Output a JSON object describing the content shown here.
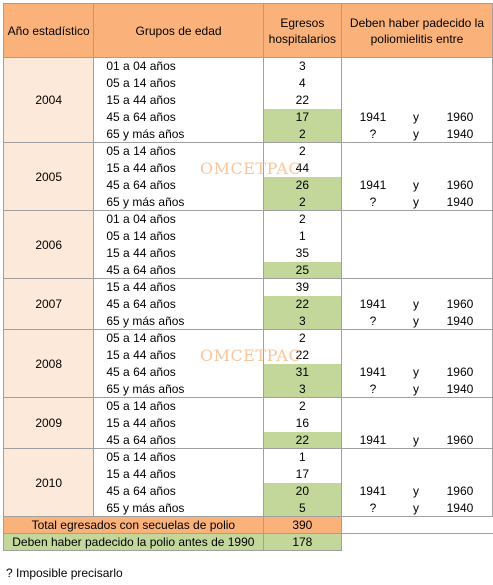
{
  "headers": {
    "year": "Año estadístico",
    "age": "Grupos de edad",
    "count": "Egresos hospitalarios",
    "period": "Deben haber padecido la poliomielitis entre"
  },
  "groups": [
    {
      "year": "2004",
      "rows": [
        {
          "age": "01 a 04 años",
          "count": "3",
          "highlight": false,
          "p1": "",
          "y": "",
          "p2": ""
        },
        {
          "age": "05 a 14 años",
          "count": "4",
          "highlight": false,
          "p1": "",
          "y": "",
          "p2": ""
        },
        {
          "age": "15 a 44 años",
          "count": "22",
          "highlight": false,
          "p1": "",
          "y": "",
          "p2": ""
        },
        {
          "age": "45 a 64 años",
          "count": "17",
          "highlight": true,
          "p1": "1941",
          "y": "y",
          "p2": "1960"
        },
        {
          "age": "65 y más años",
          "count": "2",
          "highlight": true,
          "p1": "?",
          "y": "y",
          "p2": "1940"
        }
      ]
    },
    {
      "year": "2005",
      "rows": [
        {
          "age": "05 a 14 años",
          "count": "2",
          "highlight": false,
          "p1": "",
          "y": "",
          "p2": ""
        },
        {
          "age": "15 a 44 años",
          "count": "44",
          "highlight": false,
          "p1": "",
          "y": "",
          "p2": ""
        },
        {
          "age": "45 a 64 años",
          "count": "26",
          "highlight": true,
          "p1": "1941",
          "y": "y",
          "p2": "1960"
        },
        {
          "age": "65 y más años",
          "count": "2",
          "highlight": true,
          "p1": "?",
          "y": "y",
          "p2": "1940"
        }
      ]
    },
    {
      "year": "2006",
      "rows": [
        {
          "age": "01 a 04 años",
          "count": "2",
          "highlight": false,
          "p1": "",
          "y": "",
          "p2": ""
        },
        {
          "age": "05 a 14 años",
          "count": "1",
          "highlight": false,
          "p1": "",
          "y": "",
          "p2": ""
        },
        {
          "age": "15 a 44 años",
          "count": "35",
          "highlight": false,
          "p1": "",
          "y": "",
          "p2": ""
        },
        {
          "age": "45 a 64 años",
          "count": "25",
          "highlight": true,
          "p1": "",
          "y": "",
          "p2": ""
        }
      ]
    },
    {
      "year": "2007",
      "rows": [
        {
          "age": "15 a 44 años",
          "count": "39",
          "highlight": false,
          "p1": "",
          "y": "",
          "p2": ""
        },
        {
          "age": "45 a 64 años",
          "count": "22",
          "highlight": true,
          "p1": "1941",
          "y": "y",
          "p2": "1960"
        },
        {
          "age": "65 y más años",
          "count": "3",
          "highlight": true,
          "p1": "?",
          "y": "y",
          "p2": "1940"
        }
      ]
    },
    {
      "year": "2008",
      "rows": [
        {
          "age": "05 a 14 años",
          "count": "2",
          "highlight": false,
          "p1": "",
          "y": "",
          "p2": ""
        },
        {
          "age": "15 a 44 años",
          "count": "22",
          "highlight": false,
          "p1": "",
          "y": "",
          "p2": ""
        },
        {
          "age": "45 a 64 años",
          "count": "31",
          "highlight": true,
          "p1": "1941",
          "y": "y",
          "p2": "1960"
        },
        {
          "age": "65 y más años",
          "count": "3",
          "highlight": true,
          "p1": "?",
          "y": "y",
          "p2": "1940"
        }
      ]
    },
    {
      "year": "2009",
      "rows": [
        {
          "age": "05 a 14 años",
          "count": "2",
          "highlight": false,
          "p1": "",
          "y": "",
          "p2": ""
        },
        {
          "age": "15 a 44 años",
          "count": "16",
          "highlight": false,
          "p1": "",
          "y": "",
          "p2": ""
        },
        {
          "age": "45 a 64 años",
          "count": "22",
          "highlight": true,
          "p1": "1941",
          "y": "y",
          "p2": "1960"
        }
      ]
    },
    {
      "year": "2010",
      "rows": [
        {
          "age": "05 a 14 años",
          "count": "1",
          "highlight": false,
          "p1": "",
          "y": "",
          "p2": ""
        },
        {
          "age": "15 a 44 años",
          "count": "17",
          "highlight": false,
          "p1": "",
          "y": "",
          "p2": ""
        },
        {
          "age": "45 a 64 años",
          "count": "20",
          "highlight": true,
          "p1": "1941",
          "y": "y",
          "p2": "1960"
        },
        {
          "age": "65 y más años",
          "count": "5",
          "highlight": true,
          "p1": "?",
          "y": "y",
          "p2": "1940"
        }
      ]
    }
  ],
  "totals": {
    "total_label": "Total egresados con secuelas de polio",
    "total_value": "390",
    "polio_label": "Deben haber padecido la polio antes de 1990",
    "polio_value": "178"
  },
  "watermark": "OMCETPAC",
  "footnote": "? Imposible precisarlo",
  "colors": {
    "header_bg": "#fab27a",
    "year_bg": "#fde9d9",
    "highlight_bg": "#c4d79b"
  }
}
